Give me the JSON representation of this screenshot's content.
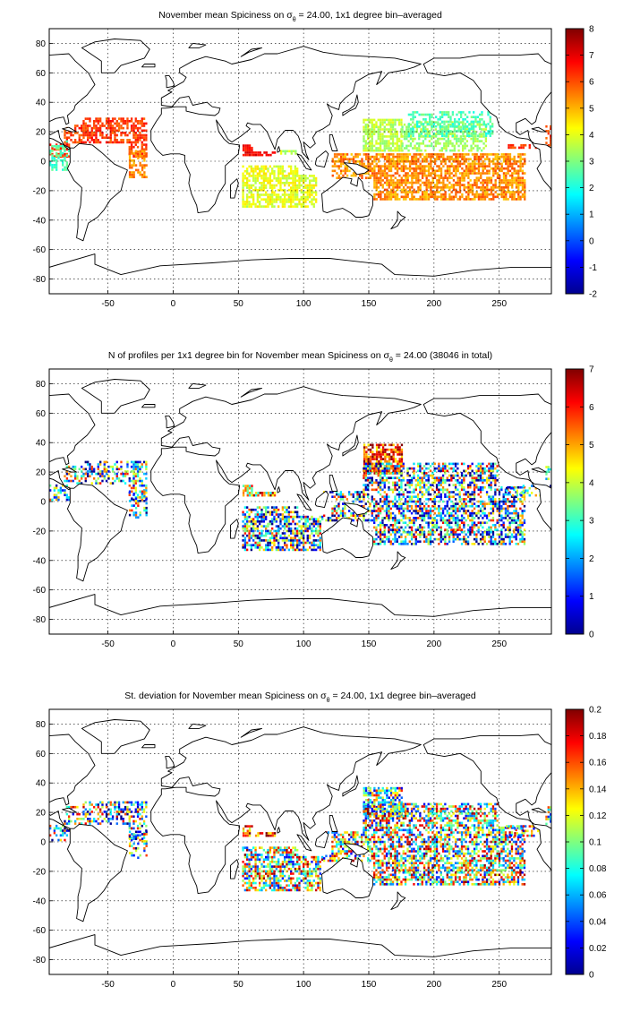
{
  "panels": [
    {
      "id": "mean",
      "title_prefix": "November mean Spiciness on ",
      "sigma_symbol": "σ",
      "sigma_sub": "θ",
      "title_suffix": " = 24.00, 1x1 degree bin–averaged",
      "colorbar": {
        "min": -2,
        "max": 8,
        "ticks": [
          "-2",
          "-1",
          "0",
          "1",
          "2",
          "3",
          "4",
          "5",
          "6",
          "7",
          "8"
        ]
      }
    },
    {
      "id": "count",
      "title_prefix": "N of profiles per 1x1 degree bin for November mean Spiciness on ",
      "sigma_symbol": "σ",
      "sigma_sub": "θ",
      "title_suffix": " = 24.00 (38046 in total)",
      "colorbar": {
        "min": 0,
        "max": 7,
        "ticks": [
          "0",
          "1",
          "2",
          "3",
          "4",
          "5",
          "6",
          "7"
        ]
      }
    },
    {
      "id": "std",
      "title_prefix": "St. deviation for November mean Spiciness on ",
      "sigma_symbol": "σ",
      "sigma_sub": "θ",
      "title_suffix": " = 24.00, 1x1 degree bin–averaged",
      "colorbar": {
        "min": 0,
        "max": 0.2,
        "ticks": [
          "0",
          "0.02",
          "0.04",
          "0.06",
          "0.08",
          "0.1",
          "0.12",
          "0.14",
          "0.16",
          "0.18",
          "0.2"
        ]
      }
    }
  ],
  "axes": {
    "x_range": [
      -95,
      290
    ],
    "y_range": [
      -90,
      90
    ],
    "x_ticks": [
      -50,
      0,
      50,
      100,
      150,
      200,
      250
    ],
    "y_ticks": [
      -80,
      -60,
      -40,
      -20,
      0,
      20,
      40,
      60,
      80
    ],
    "x_tick_labels": [
      "-50",
      "0",
      "50",
      "100",
      "150",
      "200",
      "250"
    ],
    "y_tick_labels": [
      "-80",
      "-60",
      "-40",
      "-20",
      "0",
      "20",
      "40",
      "60",
      "80"
    ],
    "grid": "dotted"
  },
  "colormap": "jet"
}
